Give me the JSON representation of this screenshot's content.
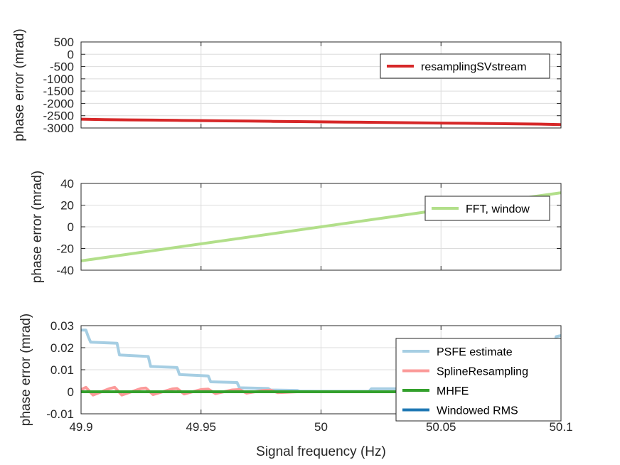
{
  "chart_data": [
    {
      "type": "line",
      "ylabel": "phase error (mrad)",
      "xlabel": "",
      "xlim": [
        49.9,
        50.1
      ],
      "ylim": [
        -3000,
        500
      ],
      "xticks": [
        "49.9",
        "49.95",
        "50",
        "50.05",
        "50.1"
      ],
      "yticks": [
        "500",
        "0",
        "-500",
        "-1000",
        "-1500",
        "-2000",
        "-2500",
        "-3000"
      ],
      "grid": true,
      "legend_position": "top-right",
      "series": [
        {
          "name": "resamplingSVstream",
          "color": "#d62728",
          "x": [
            49.9,
            49.91,
            49.92,
            49.93,
            49.94,
            49.95,
            49.96,
            49.97,
            49.98,
            49.99,
            50.0,
            50.01,
            50.02,
            50.03,
            50.04,
            50.05,
            50.06,
            50.07,
            50.08,
            50.09,
            50.1
          ],
          "y": [
            -2640,
            -2660,
            -2670,
            -2680,
            -2690,
            -2700,
            -2710,
            -2720,
            -2730,
            -2740,
            -2750,
            -2760,
            -2770,
            -2780,
            -2790,
            -2800,
            -2810,
            -2820,
            -2830,
            -2840,
            -2860
          ]
        }
      ]
    },
    {
      "type": "line",
      "ylabel": "phase error (mrad)",
      "xlabel": "",
      "xlim": [
        49.9,
        50.1
      ],
      "ylim": [
        -40,
        40
      ],
      "xticks": [
        "49.9",
        "49.95",
        "50",
        "50.05",
        "50.1"
      ],
      "yticks": [
        "40",
        "20",
        "0",
        "-20",
        "-40"
      ],
      "grid": true,
      "legend_position": "top-right",
      "series": [
        {
          "name": "FFT, window",
          "color": "#b2df8a",
          "x": [
            49.9,
            50.1
          ],
          "y": [
            -31.4,
            31.4
          ]
        }
      ]
    },
    {
      "type": "line",
      "ylabel": "phase error (mrad)",
      "xlabel": "Signal frequency (Hz)",
      "xlim": [
        49.9,
        50.1
      ],
      "ylim": [
        -0.01,
        0.03
      ],
      "xticks": [
        "49.9",
        "49.95",
        "50",
        "50.05",
        "50.1"
      ],
      "yticks": [
        "0.03",
        "0.02",
        "0.01",
        "0",
        "-0.01"
      ],
      "grid": true,
      "legend_position": "bottom-right",
      "series": [
        {
          "name": "PSFE estimate",
          "color": "#a6cee3",
          "x": [
            49.9,
            49.902,
            49.903,
            49.904,
            49.915,
            49.916,
            49.928,
            49.929,
            49.94,
            49.941,
            49.953,
            49.954,
            49.965,
            49.966,
            49.978,
            49.979,
            49.99,
            49.991,
            50.0,
            50.02,
            50.021,
            50.035,
            50.036,
            50.05,
            50.051,
            50.095,
            50.096,
            50.097,
            50.098,
            50.1
          ],
          "y": [
            0.028,
            0.028,
            0.025,
            0.0225,
            0.022,
            0.0167,
            0.016,
            0.0115,
            0.011,
            0.0078,
            0.0072,
            0.0045,
            0.0042,
            0.0018,
            0.0015,
            0.0008,
            0.0006,
            0.0003,
            0.0002,
            0.0002,
            0.0014,
            0.0014,
            0.0015,
            0.0015,
            0.0004,
            0.0005,
            0.0195,
            0.02,
            0.025,
            0.0255
          ]
        },
        {
          "name": "SplineResampling",
          "color": "#fb9a99",
          "x": [
            49.9,
            49.902,
            49.905,
            49.912,
            49.914,
            49.917,
            49.925,
            49.927,
            49.93,
            49.938,
            49.94,
            49.943,
            49.95,
            49.953,
            49.956,
            49.963,
            49.966,
            49.969,
            49.976,
            49.979,
            49.982,
            49.99,
            50.0,
            50.01,
            50.02,
            50.03,
            50.04,
            50.05,
            50.06,
            50.07,
            50.08,
            50.09,
            50.096,
            50.098,
            50.1
          ],
          "y": [
            0.001,
            0.002,
            -0.0015,
            0.0015,
            0.002,
            -0.0015,
            0.0015,
            0.0017,
            -0.0013,
            0.0013,
            0.0015,
            -0.001,
            0.001,
            0.0012,
            -0.0008,
            0.0008,
            0.001,
            -0.0006,
            0.0006,
            0.0007,
            -0.0004,
            0.0,
            0.0,
            0.0,
            0.0,
            0.0,
            0.0,
            0.0,
            0.0,
            0.0,
            0.0,
            0.0,
            0.0,
            0.002,
            0.0015
          ]
        },
        {
          "name": "MHFE",
          "color": "#33a02c",
          "x": [
            49.9,
            50.1
          ],
          "y": [
            0.0,
            0.0
          ]
        },
        {
          "name": "Windowed RMS",
          "color": "#1f78b4",
          "x": [],
          "y": []
        }
      ]
    }
  ]
}
